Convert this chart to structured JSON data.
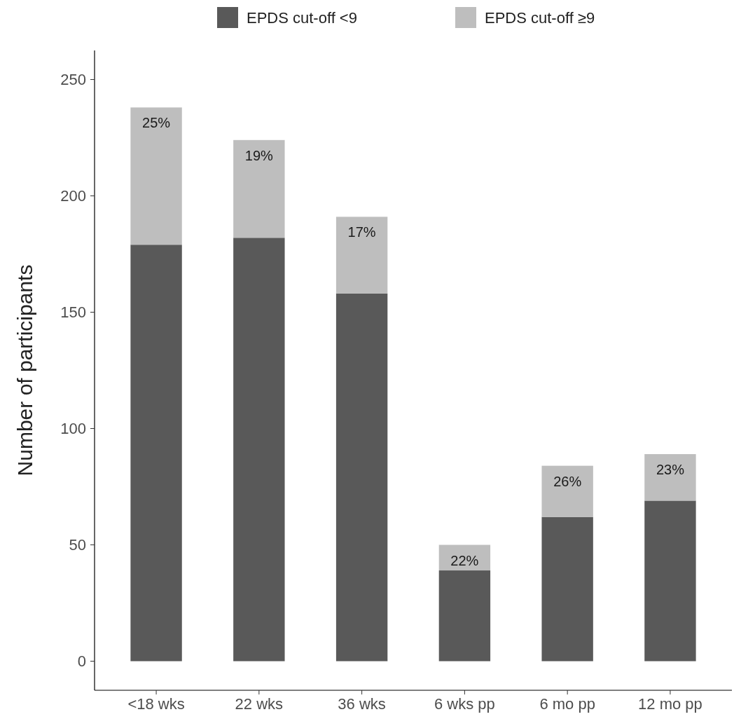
{
  "chart_data": {
    "type": "bar",
    "stacked": true,
    "ylabel": "Number of participants",
    "categories": [
      "<18 wks",
      "22 wks",
      "36 wks",
      "6 wks pp",
      "6 mo pp",
      "12 mo pp"
    ],
    "series": [
      {
        "name": "EPDS cut-off <9",
        "color": "#595959",
        "values": [
          179,
          182,
          158,
          39,
          62,
          69
        ]
      },
      {
        "name": "EPDS cut-off ≥9",
        "color": "#bebebe",
        "values": [
          59,
          42,
          33,
          11,
          22,
          20
        ]
      }
    ],
    "annotations": [
      {
        "text": "25%",
        "x": "<18 wks",
        "y": 238
      },
      {
        "text": "19%",
        "x": "22 wks",
        "y": 224
      },
      {
        "text": "17%",
        "x": "36 wks",
        "y": 191
      },
      {
        "text": "22%",
        "x": "6 wks pp",
        "y": 50
      },
      {
        "text": "26%",
        "x": "6 mo pp",
        "y": 84
      },
      {
        "text": "23%",
        "x": "12 mo pp",
        "y": 89
      }
    ],
    "ylim": [
      -12.5,
      262.5
    ],
    "yticks": [
      0,
      50,
      100,
      150,
      200,
      250
    ],
    "legend": "top",
    "grid": false
  }
}
